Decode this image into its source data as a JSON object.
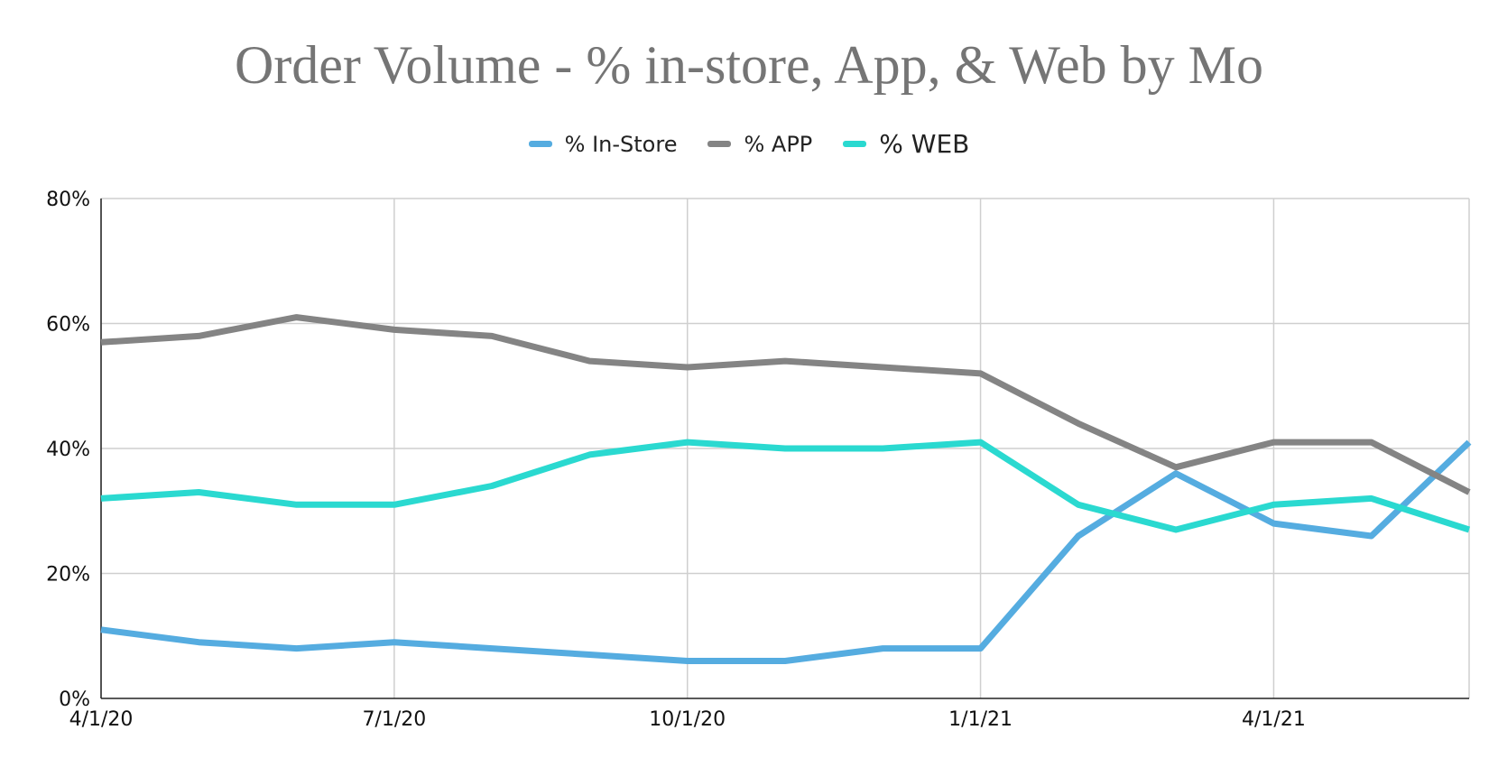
{
  "chart_data": {
    "type": "line",
    "title": "Order Volume - % in-store, App, & Web by Mo",
    "xlabel": "",
    "ylabel": "",
    "x": [
      "4/1/20",
      "5/1/20",
      "6/1/20",
      "7/1/20",
      "8/1/20",
      "9/1/20",
      "10/1/20",
      "11/1/20",
      "12/1/20",
      "1/1/21",
      "2/1/21",
      "3/1/21",
      "4/1/21",
      "5/1/21",
      "6/1/21"
    ],
    "x_tick_labels": [
      "4/1/20",
      "7/1/20",
      "10/1/20",
      "1/1/21",
      "4/1/21"
    ],
    "y_tick_labels": [
      "0%",
      "20%",
      "40%",
      "60%",
      "80%"
    ],
    "ylim": [
      0,
      80
    ],
    "y_unit": "%",
    "grid": true,
    "legend_position": "top-center",
    "series": [
      {
        "name": "% In-Store",
        "color": "#55ace0",
        "values": [
          11,
          9,
          8,
          9,
          8,
          7,
          6,
          6,
          8,
          8,
          26,
          36,
          28,
          26,
          41
        ]
      },
      {
        "name": "% APP",
        "color": "#848484",
        "values": [
          57,
          58,
          61,
          59,
          58,
          54,
          53,
          54,
          53,
          52,
          44,
          37,
          41,
          41,
          33
        ]
      },
      {
        "name": "% WEB",
        "color": "#2ad9d0",
        "values": [
          32,
          33,
          31,
          31,
          34,
          39,
          41,
          40,
          40,
          41,
          31,
          27,
          31,
          32,
          27
        ]
      }
    ]
  }
}
